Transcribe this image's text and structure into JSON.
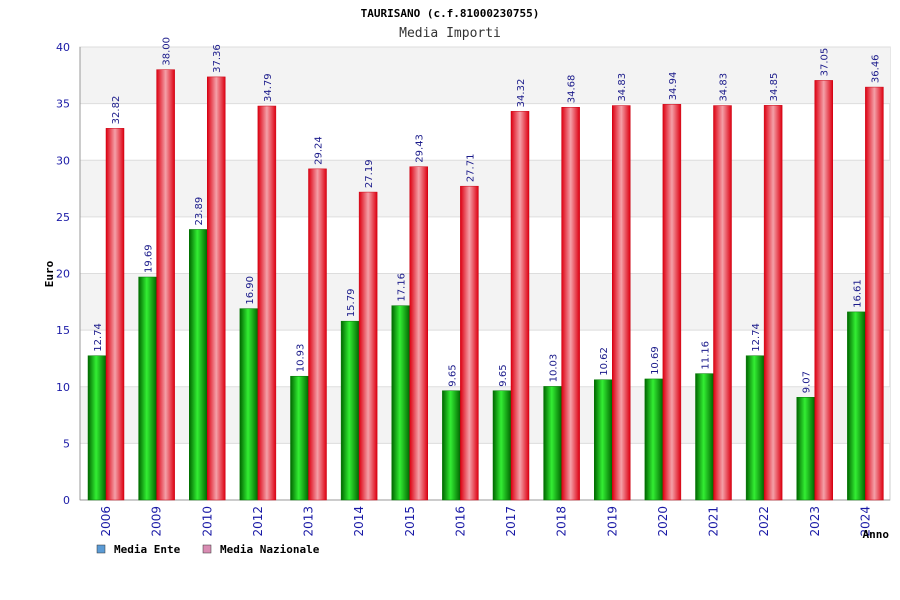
{
  "chart_data": {
    "type": "bar",
    "title": "TAURISANO (c.f.81000230755)",
    "subtitle": "Media Importi",
    "xlabel": "Anno",
    "ylabel": "Euro",
    "ylim": [
      0,
      40
    ],
    "yticks": [
      "0",
      "5",
      "10",
      "15",
      "20",
      "25",
      "30",
      "35",
      "40"
    ],
    "grid": true,
    "legend_position": "bottom-left",
    "categories": [
      "2006",
      "2009",
      "2010",
      "2012",
      "2013",
      "2014",
      "2015",
      "2016",
      "2017",
      "2018",
      "2019",
      "2020",
      "2021",
      "2022",
      "2023",
      "2024"
    ],
    "series": [
      {
        "name": "Media Ente",
        "color": "#00aa00",
        "legend_color": "#5b9bd5",
        "values": [
          12.74,
          19.69,
          23.89,
          16.9,
          10.93,
          15.79,
          17.16,
          9.65,
          9.65,
          10.03,
          10.62,
          10.69,
          11.16,
          12.74,
          9.07,
          16.61
        ],
        "labels": [
          "12.74",
          "19.69",
          "23.89",
          "16.90",
          "10.93",
          "15.79",
          "17.16",
          "9.65",
          "9.65",
          "10.03",
          "10.62",
          "10.69",
          "11.16",
          "12.74",
          "9.07",
          "16.61"
        ]
      },
      {
        "name": "Media Nazionale",
        "color": "#ee1122",
        "legend_color": "#d98cb3",
        "values": [
          32.82,
          38.0,
          37.36,
          34.79,
          29.24,
          27.19,
          29.43,
          27.71,
          34.32,
          34.68,
          34.83,
          34.94,
          34.83,
          34.85,
          37.05,
          36.46
        ],
        "labels": [
          "32.82",
          "38.00",
          "37.36",
          "34.79",
          "29.24",
          "27.19",
          "29.43",
          "27.71",
          "34.32",
          "34.68",
          "34.83",
          "34.94",
          "34.83",
          "34.85",
          "37.05",
          "36.46"
        ]
      }
    ]
  }
}
